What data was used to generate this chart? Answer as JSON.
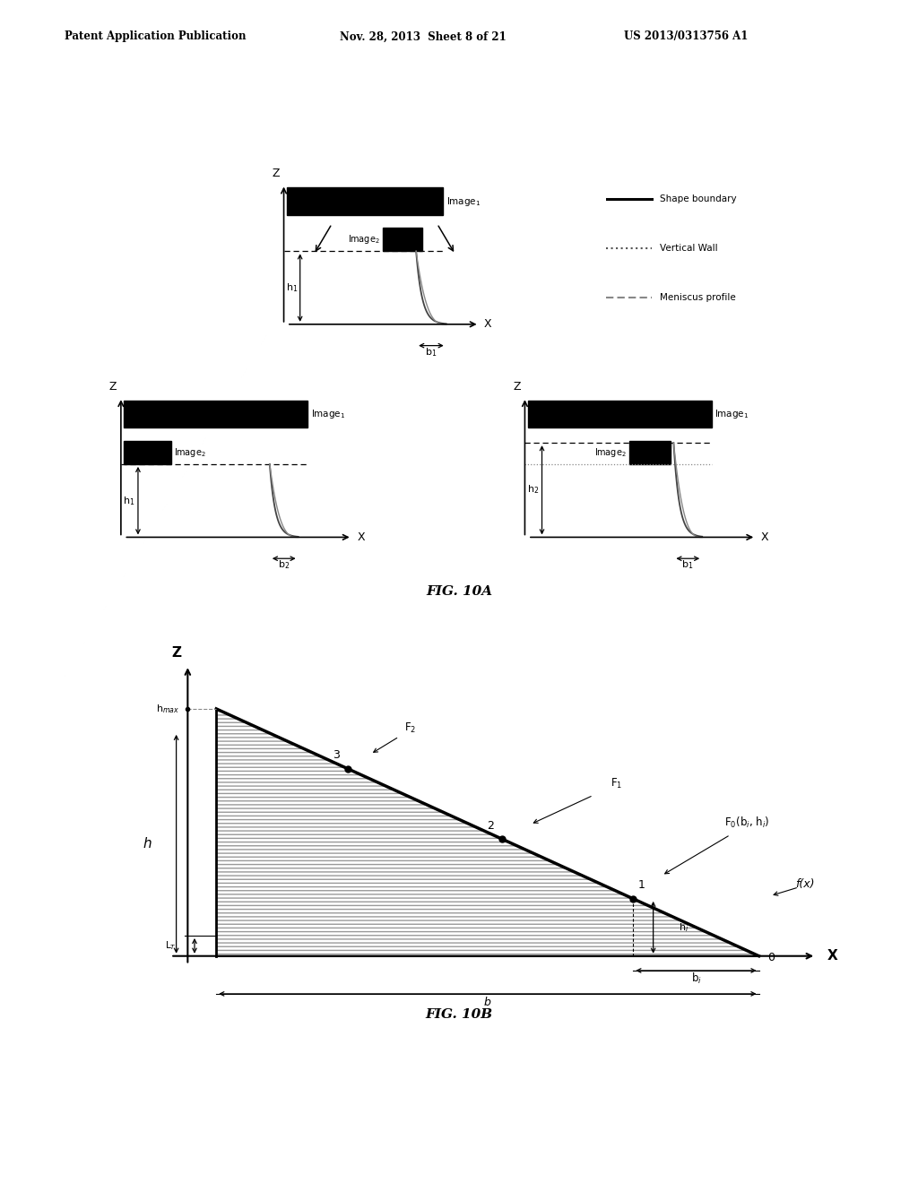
{
  "header_left": "Patent Application Publication",
  "header_mid": "Nov. 28, 2013  Sheet 8 of 21",
  "header_right": "US 2013/0313756 A1",
  "fig10a_label": "FIG. 10A",
  "fig10b_label": "FIG. 10B",
  "bg_color": "#ffffff",
  "black": "#000000",
  "gray": "#666666",
  "light_gray": "#aaaaaa"
}
